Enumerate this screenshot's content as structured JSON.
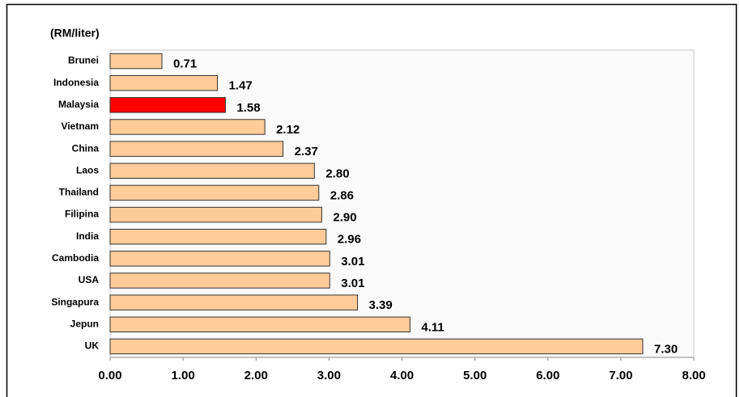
{
  "chart_data": {
    "type": "hbar",
    "unit_label": "(RM/liter)",
    "categories": [
      "Brunei",
      "Indonesia",
      "Malaysia",
      "Vietnam",
      "China",
      "Laos",
      "Thailand",
      "Filipina",
      "India",
      "Cambodia",
      "USA",
      "Singapura",
      "Jepun",
      "UK"
    ],
    "values": [
      0.71,
      1.47,
      1.58,
      2.12,
      2.37,
      2.8,
      2.86,
      2.9,
      2.96,
      3.01,
      3.01,
      3.39,
      4.11,
      7.3
    ],
    "value_labels": [
      "0.71",
      "1.47",
      "1.58",
      "2.12",
      "2.37",
      "2.80",
      "2.86",
      "2.90",
      "2.96",
      "3.01",
      "3.01",
      "3.39",
      "4.11",
      "7.30"
    ],
    "colors": [
      "#ffcc99",
      "#ffcc99",
      "#ff0000",
      "#ffcc99",
      "#ffcc99",
      "#ffcc99",
      "#ffcc99",
      "#ffcc99",
      "#ffcc99",
      "#ffcc99",
      "#ffcc99",
      "#ffcc99",
      "#ffcc99",
      "#ffcc99"
    ],
    "xlim": [
      0,
      8
    ],
    "xticks": [
      {
        "value": 0,
        "label": "0.00"
      },
      {
        "value": 1,
        "label": "1.00"
      },
      {
        "value": 2,
        "label": "2.00"
      },
      {
        "value": 3,
        "label": "3.00"
      },
      {
        "value": 4,
        "label": "4.00"
      },
      {
        "value": 5,
        "label": "5.00"
      },
      {
        "value": 6,
        "label": "6.00"
      },
      {
        "value": 7,
        "label": "7.00"
      },
      {
        "value": 8,
        "label": "8.00"
      }
    ]
  }
}
